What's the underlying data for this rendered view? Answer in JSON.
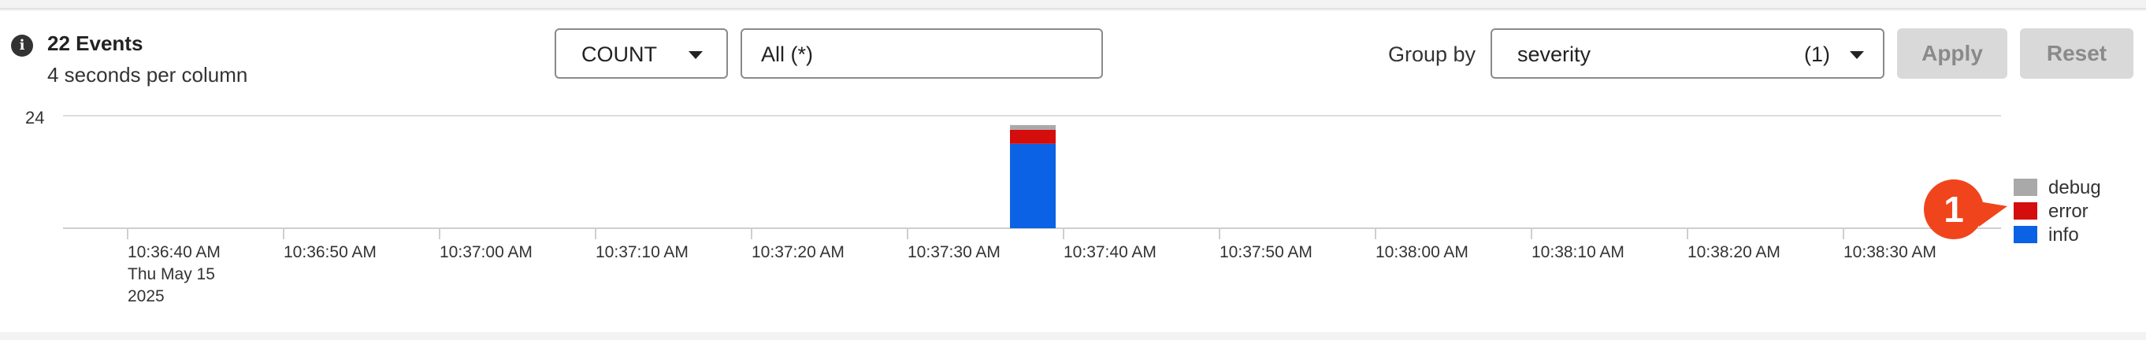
{
  "summary": {
    "title": "22 Events",
    "subtitle": "4 seconds per column"
  },
  "toolbar": {
    "aggregation": "COUNT",
    "filter": "All (*)",
    "group_by_label": "Group by",
    "group_by_value": "severity",
    "group_by_count": "(1)",
    "apply_label": "Apply",
    "reset_label": "Reset"
  },
  "annotation": {
    "badge": "1"
  },
  "colors": {
    "debug": "#a9a9a9",
    "error": "#d40d0d",
    "info": "#0b62e4",
    "badge": "#f0441d"
  },
  "chart_data": {
    "type": "bar",
    "stacked": true,
    "y_tick_label": "24",
    "ylim": [
      0,
      24
    ],
    "x_ticks": [
      "10:36:40 AM",
      "10:36:50 AM",
      "10:37:00 AM",
      "10:37:10 AM",
      "10:37:20 AM",
      "10:37:30 AM",
      "10:37:40 AM",
      "10:37:50 AM",
      "10:38:00 AM",
      "10:38:10 AM",
      "10:38:20 AM",
      "10:38:30 AM"
    ],
    "x_date_line1": "Thu May 15",
    "x_date_line2": "2025",
    "bucket": "10:37:36 AM",
    "series": [
      {
        "name": "debug",
        "color": "#a9a9a9",
        "value": 1
      },
      {
        "name": "error",
        "color": "#d40d0d",
        "value": 3
      },
      {
        "name": "info",
        "color": "#0b62e4",
        "value": 18
      }
    ],
    "legend_order": [
      "debug",
      "error",
      "info"
    ],
    "legend_position": "right"
  }
}
